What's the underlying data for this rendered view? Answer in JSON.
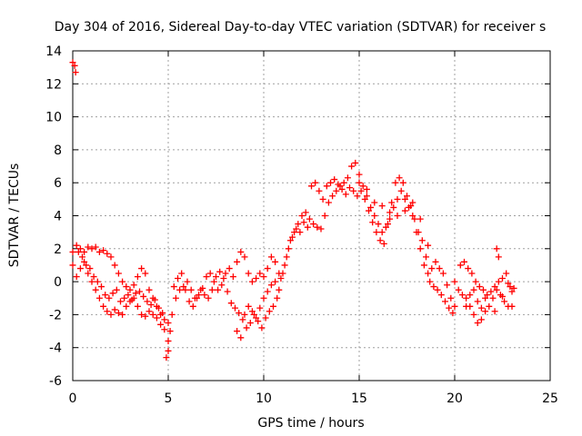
{
  "chart_data": {
    "type": "scatter",
    "title": "Day 304 of 2016, Sidereal Day-to-day VTEC variation (SDTVAR) for receiver s",
    "xlabel": "GPS time / hours",
    "ylabel": "SDTVAR / TECUs",
    "xlim": [
      0,
      25
    ],
    "ylim": [
      -6,
      14
    ],
    "xticks": [
      0,
      5,
      10,
      15,
      20,
      25
    ],
    "yticks": [
      -6,
      -4,
      -2,
      0,
      2,
      4,
      6,
      8,
      10,
      12,
      14
    ],
    "grid": true,
    "legend": "none",
    "marker": "+",
    "color": "#ff0000",
    "series": [
      {
        "points": [
          [
            0.0,
            13.3
          ],
          [
            0.1,
            13.1
          ],
          [
            0.15,
            12.7
          ],
          [
            0.0,
            1.8
          ],
          [
            0.2,
            2.2
          ],
          [
            0.4,
            2.0
          ],
          [
            0.6,
            1.8
          ],
          [
            0.8,
            2.1
          ],
          [
            1.0,
            2.0
          ],
          [
            1.2,
            2.1
          ],
          [
            1.4,
            1.8
          ],
          [
            1.6,
            1.9
          ],
          [
            1.8,
            1.7
          ],
          [
            2.0,
            1.5
          ],
          [
            2.2,
            1.0
          ],
          [
            2.4,
            0.5
          ],
          [
            2.6,
            0.0
          ],
          [
            2.8,
            -0.3
          ],
          [
            3.0,
            -0.5
          ],
          [
            3.2,
            -0.2
          ],
          [
            3.4,
            0.3
          ],
          [
            3.6,
            0.8
          ],
          [
            3.8,
            0.5
          ],
          [
            4.0,
            -0.5
          ],
          [
            4.2,
            -1.0
          ],
          [
            4.4,
            -1.5
          ],
          [
            4.6,
            -2.0
          ],
          [
            4.8,
            -2.3
          ],
          [
            5.0,
            -2.5
          ],
          [
            5.1,
            -3.0
          ],
          [
            0.0,
            1.0
          ],
          [
            0.2,
            0.3
          ],
          [
            0.4,
            0.8
          ],
          [
            0.6,
            1.2
          ],
          [
            0.8,
            0.5
          ],
          [
            1.0,
            0.0
          ],
          [
            1.2,
            -0.5
          ],
          [
            1.4,
            -1.0
          ],
          [
            1.6,
            -1.5
          ],
          [
            1.8,
            -1.8
          ],
          [
            2.0,
            -2.0
          ],
          [
            2.2,
            -1.7
          ],
          [
            2.4,
            -1.9
          ],
          [
            2.6,
            -2.0
          ],
          [
            2.8,
            -1.5
          ],
          [
            3.0,
            -1.2
          ],
          [
            3.2,
            -1.0
          ],
          [
            3.4,
            -1.5
          ],
          [
            3.6,
            -2.0
          ],
          [
            3.8,
            -2.1
          ],
          [
            4.0,
            -1.8
          ],
          [
            4.2,
            -2.0
          ],
          [
            4.4,
            -2.2
          ],
          [
            4.6,
            -2.6
          ],
          [
            4.8,
            -2.9
          ],
          [
            5.0,
            -3.6
          ],
          [
            5.0,
            -4.2
          ],
          [
            4.9,
            -4.6
          ],
          [
            0.3,
            1.8
          ],
          [
            0.5,
            1.5
          ],
          [
            0.7,
            1.0
          ],
          [
            0.9,
            0.8
          ],
          [
            1.1,
            0.3
          ],
          [
            1.3,
            0.0
          ],
          [
            1.5,
            -0.3
          ],
          [
            1.7,
            -0.8
          ],
          [
            1.9,
            -1.0
          ],
          [
            2.1,
            -0.7
          ],
          [
            2.3,
            -0.5
          ],
          [
            2.5,
            -1.2
          ],
          [
            2.7,
            -1.0
          ],
          [
            2.9,
            -0.8
          ],
          [
            3.1,
            -1.1
          ],
          [
            3.3,
            -0.7
          ],
          [
            3.5,
            -0.6
          ],
          [
            3.7,
            -0.9
          ],
          [
            3.9,
            -1.2
          ],
          [
            4.1,
            -1.4
          ],
          [
            4.3,
            -1.1
          ],
          [
            4.5,
            -1.6
          ],
          [
            4.7,
            -1.9
          ],
          [
            5.2,
            -2.0
          ],
          [
            5.4,
            -1.0
          ],
          [
            5.6,
            -0.5
          ],
          [
            5.8,
            -0.3
          ],
          [
            6.0,
            0.0
          ],
          [
            6.2,
            -0.5
          ],
          [
            6.4,
            -1.0
          ],
          [
            6.6,
            -0.8
          ],
          [
            6.8,
            -0.4
          ],
          [
            7.0,
            0.3
          ],
          [
            7.2,
            0.5
          ],
          [
            7.4,
            0.0
          ],
          [
            7.6,
            -0.5
          ],
          [
            7.8,
            -0.2
          ],
          [
            8.0,
            0.5
          ],
          [
            8.2,
            0.8
          ],
          [
            8.4,
            0.3
          ],
          [
            8.6,
            1.2
          ],
          [
            8.8,
            1.8
          ],
          [
            9.0,
            1.5
          ],
          [
            9.2,
            0.5
          ],
          [
            9.4,
            0.0
          ],
          [
            9.6,
            0.2
          ],
          [
            9.8,
            0.5
          ],
          [
            10.0,
            0.3
          ],
          [
            10.2,
            0.8
          ],
          [
            10.4,
            1.5
          ],
          [
            10.6,
            1.2
          ],
          [
            10.8,
            0.5
          ],
          [
            5.3,
            -0.3
          ],
          [
            5.5,
            0.2
          ],
          [
            5.7,
            0.5
          ],
          [
            5.9,
            -0.5
          ],
          [
            6.1,
            -1.2
          ],
          [
            6.3,
            -1.5
          ],
          [
            6.5,
            -1.0
          ],
          [
            6.7,
            -0.5
          ],
          [
            6.9,
            -0.8
          ],
          [
            7.1,
            -1.0
          ],
          [
            7.3,
            -0.5
          ],
          [
            7.5,
            0.3
          ],
          [
            7.7,
            0.6
          ],
          [
            7.9,
            0.2
          ],
          [
            8.1,
            -0.6
          ],
          [
            8.3,
            -1.3
          ],
          [
            8.5,
            -1.6
          ],
          [
            8.7,
            -1.9
          ],
          [
            8.9,
            -2.3
          ],
          [
            9.1,
            -2.8
          ],
          [
            9.3,
            -2.5
          ],
          [
            9.5,
            -2.0
          ],
          [
            9.7,
            -2.4
          ],
          [
            9.9,
            -2.8
          ],
          [
            10.1,
            -2.2
          ],
          [
            10.3,
            -1.8
          ],
          [
            10.5,
            -1.5
          ],
          [
            10.7,
            -1.0
          ],
          [
            10.9,
            0.2
          ],
          [
            8.6,
            -3.0
          ],
          [
            8.8,
            -3.4
          ],
          [
            9.0,
            -2.0
          ],
          [
            9.2,
            -1.5
          ],
          [
            9.4,
            -1.8
          ],
          [
            9.6,
            -2.2
          ],
          [
            9.8,
            -1.6
          ],
          [
            10.0,
            -1.0
          ],
          [
            10.2,
            -0.6
          ],
          [
            10.4,
            -0.2
          ],
          [
            10.6,
            0.0
          ],
          [
            10.8,
            -0.5
          ],
          [
            11.0,
            0.5
          ],
          [
            11.2,
            1.5
          ],
          [
            11.4,
            2.5
          ],
          [
            11.6,
            3.0
          ],
          [
            11.8,
            3.5
          ],
          [
            12.0,
            4.0
          ],
          [
            12.2,
            4.2
          ],
          [
            12.4,
            3.8
          ],
          [
            12.6,
            3.5
          ],
          [
            12.8,
            3.3
          ],
          [
            13.0,
            3.2
          ],
          [
            13.2,
            4.0
          ],
          [
            13.4,
            4.8
          ],
          [
            13.6,
            5.2
          ],
          [
            13.8,
            5.5
          ],
          [
            14.0,
            5.8
          ],
          [
            14.2,
            6.0
          ],
          [
            14.4,
            6.3
          ],
          [
            14.6,
            7.0
          ],
          [
            14.8,
            7.2
          ],
          [
            15.0,
            6.5
          ],
          [
            15.2,
            5.8
          ],
          [
            15.4,
            5.2
          ],
          [
            15.6,
            4.5
          ],
          [
            15.8,
            4.0
          ],
          [
            16.0,
            3.5
          ],
          [
            16.2,
            3.0
          ],
          [
            16.4,
            3.3
          ],
          [
            16.6,
            3.8
          ],
          [
            16.8,
            4.5
          ],
          [
            17.0,
            5.0
          ],
          [
            17.2,
            5.5
          ],
          [
            17.4,
            5.0
          ],
          [
            17.6,
            4.5
          ],
          [
            17.8,
            4.0
          ],
          [
            18.0,
            3.0
          ],
          [
            18.2,
            2.0
          ],
          [
            18.4,
            1.0
          ],
          [
            18.6,
            0.5
          ],
          [
            18.8,
            0.8
          ],
          [
            19.0,
            1.2
          ],
          [
            19.2,
            0.8
          ],
          [
            19.4,
            0.5
          ],
          [
            19.6,
            -0.2
          ],
          [
            19.8,
            -1.0
          ],
          [
            20.0,
            -1.5
          ],
          [
            11.1,
            1.0
          ],
          [
            11.3,
            2.0
          ],
          [
            11.5,
            2.7
          ],
          [
            11.7,
            3.2
          ],
          [
            11.9,
            3.0
          ],
          [
            12.1,
            3.6
          ],
          [
            12.3,
            3.3
          ],
          [
            12.5,
            5.8
          ],
          [
            12.7,
            6.0
          ],
          [
            12.9,
            5.5
          ],
          [
            13.1,
            5.0
          ],
          [
            13.3,
            5.8
          ],
          [
            13.5,
            6.0
          ],
          [
            13.7,
            6.2
          ],
          [
            13.9,
            5.9
          ],
          [
            14.1,
            5.6
          ],
          [
            14.3,
            5.3
          ],
          [
            14.5,
            5.7
          ],
          [
            14.7,
            5.5
          ],
          [
            14.9,
            5.2
          ],
          [
            15.1,
            5.5
          ],
          [
            15.3,
            5.0
          ],
          [
            15.5,
            4.3
          ],
          [
            15.7,
            3.6
          ],
          [
            15.9,
            3.0
          ],
          [
            16.1,
            2.5
          ],
          [
            16.3,
            2.3
          ],
          [
            16.5,
            3.5
          ],
          [
            16.7,
            4.8
          ],
          [
            16.9,
            6.0
          ],
          [
            17.1,
            6.3
          ],
          [
            17.3,
            6.0
          ],
          [
            17.5,
            5.2
          ],
          [
            17.7,
            4.6
          ],
          [
            17.9,
            3.8
          ],
          [
            18.1,
            3.0
          ],
          [
            18.3,
            2.5
          ],
          [
            18.5,
            1.5
          ],
          [
            18.7,
            0.0
          ],
          [
            18.9,
            -0.3
          ],
          [
            19.1,
            -0.5
          ],
          [
            19.3,
            -0.8
          ],
          [
            19.5,
            -1.2
          ],
          [
            19.7,
            -1.6
          ],
          [
            19.9,
            -1.9
          ],
          [
            15.0,
            6.0
          ],
          [
            15.4,
            5.6
          ],
          [
            15.8,
            4.8
          ],
          [
            16.2,
            4.6
          ],
          [
            16.6,
            4.2
          ],
          [
            17.0,
            4.0
          ],
          [
            17.4,
            4.3
          ],
          [
            17.8,
            4.8
          ],
          [
            18.2,
            3.8
          ],
          [
            18.6,
            2.2
          ],
          [
            20.0,
            0.0
          ],
          [
            20.2,
            -0.5
          ],
          [
            20.4,
            -0.8
          ],
          [
            20.6,
            -1.0
          ],
          [
            20.8,
            -1.5
          ],
          [
            21.0,
            -2.0
          ],
          [
            21.2,
            -2.5
          ],
          [
            21.4,
            -2.3
          ],
          [
            21.6,
            -1.8
          ],
          [
            21.8,
            -1.5
          ],
          [
            22.0,
            -1.0
          ],
          [
            22.2,
            -0.5
          ],
          [
            22.4,
            -0.8
          ],
          [
            22.6,
            -1.2
          ],
          [
            22.8,
            -1.5
          ],
          [
            23.0,
            -1.5
          ],
          [
            20.3,
            1.0
          ],
          [
            20.5,
            1.2
          ],
          [
            20.7,
            0.8
          ],
          [
            20.9,
            0.5
          ],
          [
            21.1,
            0.0
          ],
          [
            21.3,
            -0.3
          ],
          [
            21.5,
            -0.5
          ],
          [
            21.7,
            -0.8
          ],
          [
            21.9,
            -0.6
          ],
          [
            22.1,
            -0.3
          ],
          [
            22.3,
            0.0
          ],
          [
            22.5,
            0.2
          ],
          [
            22.7,
            0.5
          ],
          [
            22.9,
            -0.3
          ],
          [
            22.2,
            2.0
          ],
          [
            22.3,
            1.5
          ],
          [
            20.6,
            -1.5
          ],
          [
            20.8,
            -0.8
          ],
          [
            21.0,
            -0.5
          ],
          [
            21.2,
            -1.2
          ],
          [
            21.4,
            -1.6
          ],
          [
            21.6,
            -1.0
          ],
          [
            22.1,
            -1.8
          ],
          [
            22.5,
            -0.9
          ],
          [
            22.8,
            -0.1
          ],
          [
            23.0,
            -0.6
          ],
          [
            23.1,
            -0.4
          ]
        ]
      }
    ]
  }
}
